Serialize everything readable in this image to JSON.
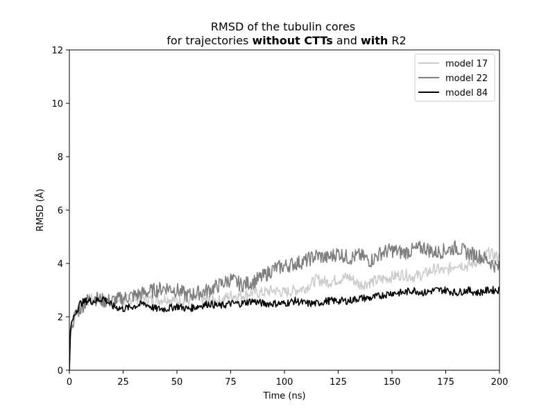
{
  "chart_data": {
    "type": "line",
    "title_line1": "RMSD of the tubulin cores",
    "title_line2": {
      "part1": "for trajectories ",
      "part2_bold": "without CTTs",
      "part3": " and ",
      "part4_bold": "with",
      "part5": " R2"
    },
    "xlabel": "Time (ns)",
    "ylabel": "RMSD (Å)",
    "xlim": [
      0,
      200
    ],
    "ylim": [
      0,
      12
    ],
    "xticks": [
      0,
      25,
      50,
      75,
      100,
      125,
      150,
      175,
      200
    ],
    "yticks": [
      0,
      2,
      4,
      6,
      8,
      10,
      12
    ],
    "xtick_labels": [
      "0",
      "25",
      "50",
      "75",
      "100",
      "125",
      "150",
      "175",
      "200"
    ],
    "ytick_labels": [
      "0",
      "2",
      "4",
      "6",
      "8",
      "10",
      "12"
    ],
    "legend_position": "top-right",
    "grid": false,
    "series": [
      {
        "name": "model 17",
        "color": "#cccccc",
        "x": [
          0,
          0.5,
          1,
          2,
          3,
          5,
          8,
          12,
          16,
          20,
          25,
          30,
          35,
          40,
          45,
          50,
          55,
          60,
          65,
          70,
          75,
          80,
          85,
          90,
          95,
          100,
          105,
          110,
          115,
          120,
          125,
          130,
          135,
          140,
          145,
          150,
          155,
          160,
          165,
          170,
          175,
          180,
          185,
          190,
          195,
          200
        ],
        "y": [
          0.0,
          1.4,
          1.7,
          2.0,
          2.2,
          2.4,
          2.6,
          2.7,
          2.6,
          2.6,
          2.6,
          2.7,
          2.7,
          2.6,
          2.7,
          2.6,
          2.6,
          2.7,
          2.6,
          2.6,
          2.8,
          2.8,
          2.9,
          2.9,
          3.0,
          2.9,
          3.0,
          3.1,
          3.4,
          3.3,
          3.4,
          3.5,
          3.2,
          3.3,
          3.4,
          3.5,
          3.6,
          3.5,
          3.6,
          3.8,
          3.7,
          4.0,
          3.9,
          4.1,
          4.4,
          4.2
        ]
      },
      {
        "name": "model 22",
        "color": "#7f7f7f",
        "x": [
          0,
          0.5,
          1,
          2,
          3,
          5,
          8,
          12,
          16,
          20,
          25,
          30,
          35,
          40,
          45,
          50,
          55,
          60,
          65,
          70,
          75,
          80,
          85,
          90,
          95,
          100,
          105,
          110,
          115,
          120,
          125,
          130,
          135,
          140,
          145,
          150,
          155,
          160,
          165,
          170,
          175,
          180,
          185,
          190,
          195,
          200
        ],
        "y": [
          0.0,
          1.3,
          1.6,
          1.9,
          2.1,
          2.3,
          2.6,
          2.7,
          2.6,
          2.6,
          2.7,
          2.8,
          2.9,
          3.0,
          3.1,
          3.0,
          2.8,
          2.9,
          3.0,
          3.2,
          3.4,
          3.2,
          3.3,
          3.5,
          3.8,
          3.9,
          4.0,
          4.1,
          4.3,
          4.2,
          4.4,
          4.2,
          4.3,
          4.1,
          4.4,
          4.5,
          4.4,
          4.5,
          4.6,
          4.4,
          4.5,
          4.6,
          4.4,
          4.3,
          4.1,
          3.8
        ]
      },
      {
        "name": "model 84",
        "color": "#000000",
        "x": [
          0,
          0.5,
          1,
          2,
          3,
          5,
          8,
          12,
          16,
          20,
          25,
          30,
          35,
          40,
          45,
          50,
          55,
          60,
          65,
          70,
          75,
          80,
          85,
          90,
          95,
          100,
          105,
          110,
          115,
          120,
          125,
          130,
          135,
          140,
          145,
          150,
          155,
          160,
          165,
          170,
          175,
          180,
          185,
          190,
          195,
          200
        ],
        "y": [
          0.0,
          1.5,
          1.8,
          2.0,
          2.2,
          2.5,
          2.6,
          2.6,
          2.7,
          2.4,
          2.3,
          2.4,
          2.5,
          2.3,
          2.3,
          2.4,
          2.3,
          2.4,
          2.5,
          2.4,
          2.5,
          2.5,
          2.6,
          2.5,
          2.5,
          2.5,
          2.6,
          2.5,
          2.5,
          2.6,
          2.6,
          2.6,
          2.7,
          2.7,
          2.8,
          2.9,
          2.9,
          3.0,
          2.9,
          3.0,
          3.0,
          2.9,
          3.0,
          2.9,
          3.0,
          3.0
        ]
      }
    ]
  }
}
